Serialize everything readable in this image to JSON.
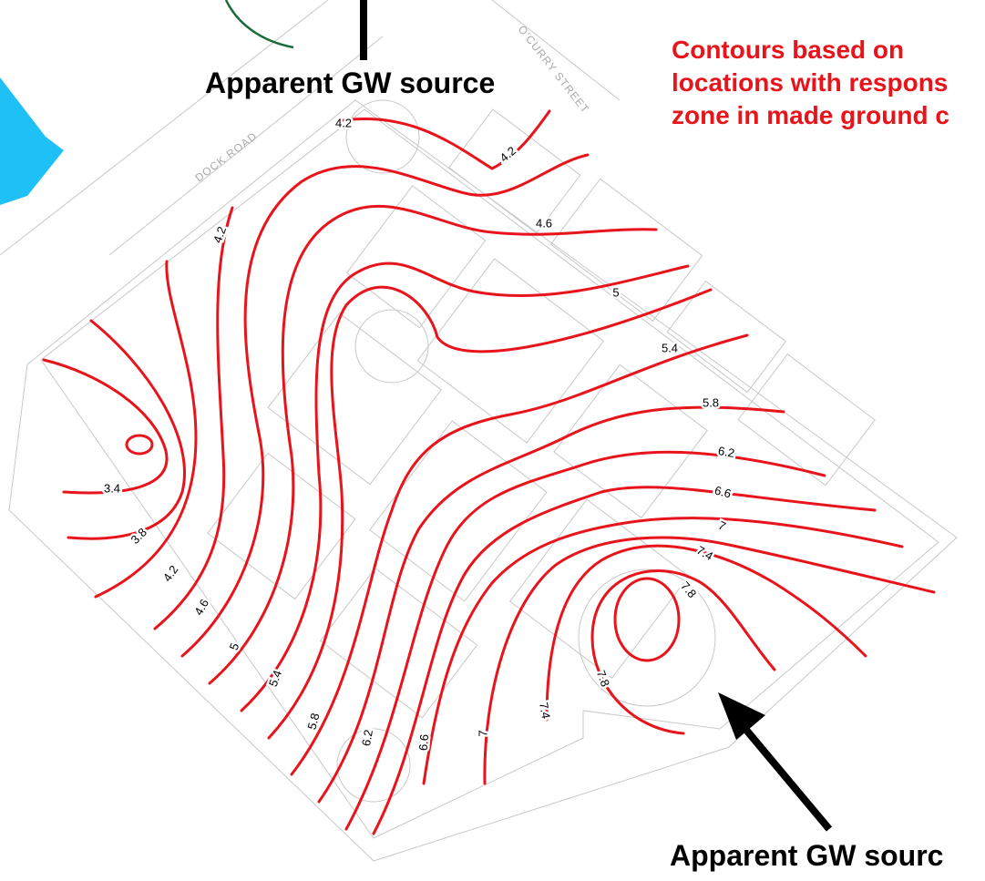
{
  "annotations": {
    "top_source": "Apparent GW source",
    "bottom_source": "Apparent GW sourc",
    "note": [
      "Contours based on",
      "locations with respons",
      "zone in made ground c"
    ]
  },
  "streets": [
    "O'CURRY STREET",
    "DOCK ROAD"
  ],
  "contour_labels": [
    4.2,
    4.2,
    4.6,
    5,
    5.4,
    5.8,
    6.2,
    6.6,
    7,
    7.4,
    7.8,
    4.2,
    3.4,
    3.8,
    4.2,
    4.6,
    5,
    5.4,
    5.8,
    6.2,
    6.6,
    7,
    7.4,
    7.8
  ]
}
